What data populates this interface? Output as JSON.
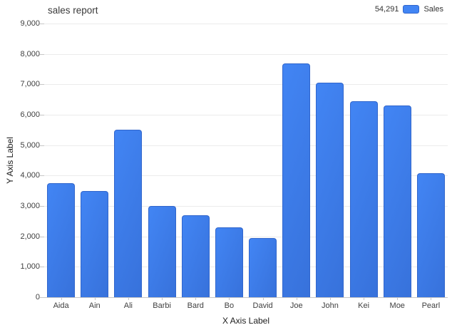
{
  "title": "sales report",
  "legend": {
    "total": "54,291",
    "series_label": "Sales"
  },
  "y_axis": {
    "label": "Y Axis Label",
    "ticks": [
      "9,000",
      "8,000",
      "7,000",
      "6,000",
      "5,000",
      "4,000",
      "3,000",
      "2,000",
      "1,000",
      "0"
    ]
  },
  "x_axis": {
    "label": "X Axis Label"
  },
  "chart_data": {
    "type": "bar",
    "title": "sales report",
    "categories": [
      "Aida",
      "Ain",
      "Ali",
      "Barbi",
      "Bard",
      "Bo",
      "David",
      "Joe",
      "John",
      "Kei",
      "Moe",
      "Pearl"
    ],
    "series": [
      {
        "name": "Sales",
        "values": [
          3750,
          3490,
          5510,
          3010,
          2700,
          2300,
          1941,
          7690,
          7060,
          6450,
          6300,
          4090
        ]
      }
    ],
    "series_total": "54,291",
    "xlabel": "X Axis Label",
    "ylabel": "Y Axis Label",
    "ylim": [
      0,
      9000
    ],
    "y_tick_step": 1000,
    "grid": true,
    "legend_position": "top-right",
    "bar_color": "#4285f4",
    "bar_border_color": "#3166cc",
    "gridline_color": "#ebebeb",
    "axis_line_color": "#c6c6c6"
  }
}
